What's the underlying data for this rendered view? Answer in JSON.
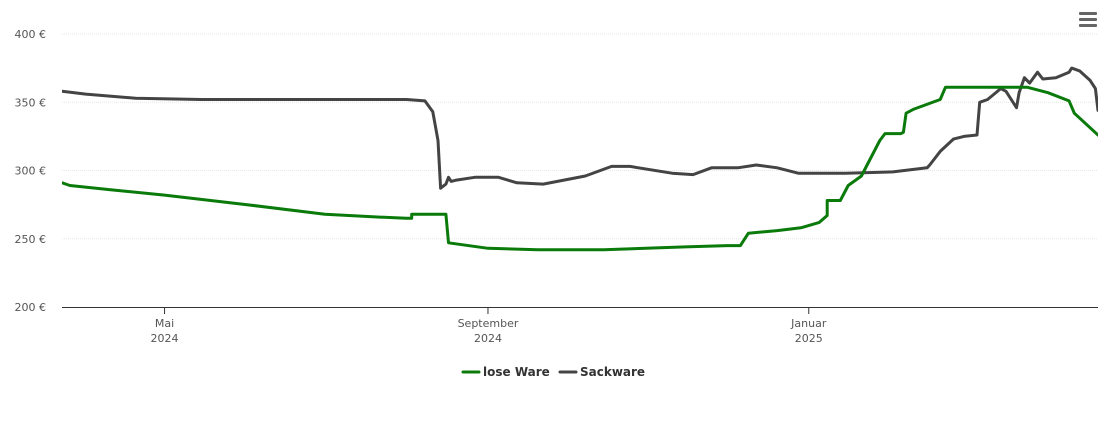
{
  "chart_data": {
    "type": "line",
    "title": "",
    "xlabel": "",
    "ylabel": "",
    "x_range": [
      "2024-03-23",
      "2025-04-21"
    ],
    "ylim": [
      200,
      400
    ],
    "y_ticks": [
      200,
      250,
      300,
      350,
      400
    ],
    "y_tick_labels": [
      "200 €",
      "250 €",
      "300 €",
      "350 €",
      "400 €"
    ],
    "x_ticks": [
      {
        "date": "2024-05-01",
        "line1": "Mai",
        "line2": "2024"
      },
      {
        "date": "2024-09-01",
        "line1": "September",
        "line2": "2024"
      },
      {
        "date": "2025-01-01",
        "line1": "Januar",
        "line2": "2025"
      }
    ],
    "grid": true,
    "legend_position": "bottom-center",
    "series": [
      {
        "name": "lose Ware",
        "color": "#0a7a0a",
        "points": [
          [
            "2024-03-23",
            291
          ],
          [
            "2024-03-26",
            289
          ],
          [
            "2024-04-10",
            286
          ],
          [
            "2024-05-01",
            282
          ],
          [
            "2024-06-01",
            275
          ],
          [
            "2024-07-01",
            268
          ],
          [
            "2024-07-20",
            266
          ],
          [
            "2024-08-01",
            265
          ],
          [
            "2024-08-03",
            265
          ],
          [
            "2024-08-03",
            268
          ],
          [
            "2024-08-16",
            268
          ],
          [
            "2024-08-17",
            247
          ],
          [
            "2024-09-01",
            243
          ],
          [
            "2024-09-20",
            242
          ],
          [
            "2024-10-15",
            242
          ],
          [
            "2024-11-15",
            244
          ],
          [
            "2024-12-01",
            245
          ],
          [
            "2024-12-06",
            245
          ],
          [
            "2024-12-09",
            254
          ],
          [
            "2024-12-20",
            256
          ],
          [
            "2024-12-29",
            258
          ],
          [
            "2025-01-05",
            262
          ],
          [
            "2025-01-08",
            267
          ],
          [
            "2025-01-08",
            278
          ],
          [
            "2025-01-13",
            278
          ],
          [
            "2025-01-16",
            289
          ],
          [
            "2025-01-21",
            296
          ],
          [
            "2025-01-28",
            322
          ],
          [
            "2025-01-30",
            327
          ],
          [
            "2025-02-05",
            327
          ],
          [
            "2025-02-06",
            328
          ],
          [
            "2025-02-07",
            342
          ],
          [
            "2025-02-10",
            345
          ],
          [
            "2025-02-20",
            352
          ],
          [
            "2025-02-22",
            361
          ],
          [
            "2025-03-10",
            361
          ],
          [
            "2025-03-25",
            361
          ],
          [
            "2025-04-02",
            357
          ],
          [
            "2025-04-10",
            351
          ],
          [
            "2025-04-12",
            342
          ],
          [
            "2025-04-21",
            326
          ]
        ]
      },
      {
        "name": "Sackware",
        "color": "#444444",
        "points": [
          [
            "2024-03-23",
            358
          ],
          [
            "2024-04-01",
            356
          ],
          [
            "2024-04-20",
            353
          ],
          [
            "2024-05-15",
            352
          ],
          [
            "2024-06-15",
            352
          ],
          [
            "2024-07-15",
            352
          ],
          [
            "2024-08-01",
            352
          ],
          [
            "2024-08-08",
            351
          ],
          [
            "2024-08-11",
            343
          ],
          [
            "2024-08-13",
            322
          ],
          [
            "2024-08-14",
            287
          ],
          [
            "2024-08-16",
            290
          ],
          [
            "2024-08-17",
            295
          ],
          [
            "2024-08-18",
            292
          ],
          [
            "2024-08-20",
            293
          ],
          [
            "2024-08-27",
            295
          ],
          [
            "2024-09-05",
            295
          ],
          [
            "2024-09-12",
            291
          ],
          [
            "2024-09-22",
            290
          ],
          [
            "2024-10-08",
            296
          ],
          [
            "2024-10-18",
            303
          ],
          [
            "2024-10-25",
            303
          ],
          [
            "2024-11-10",
            298
          ],
          [
            "2024-11-18",
            297
          ],
          [
            "2024-11-25",
            302
          ],
          [
            "2024-12-05",
            302
          ],
          [
            "2024-12-12",
            304
          ],
          [
            "2024-12-20",
            302
          ],
          [
            "2024-12-28",
            298
          ],
          [
            "2025-01-15",
            298
          ],
          [
            "2025-02-02",
            299
          ],
          [
            "2025-02-15",
            302
          ],
          [
            "2025-02-16",
            304
          ],
          [
            "2025-02-20",
            314
          ],
          [
            "2025-02-25",
            323
          ],
          [
            "2025-03-01",
            325
          ],
          [
            "2025-03-06",
            326
          ],
          [
            "2025-03-07",
            350
          ],
          [
            "2025-03-10",
            352
          ],
          [
            "2025-03-15",
            360
          ],
          [
            "2025-03-17",
            358
          ],
          [
            "2025-03-21",
            346
          ],
          [
            "2025-03-22",
            357
          ],
          [
            "2025-03-24",
            368
          ],
          [
            "2025-03-26",
            364
          ],
          [
            "2025-03-29",
            372
          ],
          [
            "2025-03-31",
            367
          ],
          [
            "2025-04-05",
            368
          ],
          [
            "2025-04-10",
            372
          ],
          [
            "2025-04-11",
            375
          ],
          [
            "2025-04-14",
            373
          ],
          [
            "2025-04-18",
            366
          ],
          [
            "2025-04-20",
            360
          ],
          [
            "2025-04-21",
            344
          ]
        ]
      }
    ]
  },
  "toolbar": {
    "menu_icon": "hamburger-menu-icon"
  }
}
